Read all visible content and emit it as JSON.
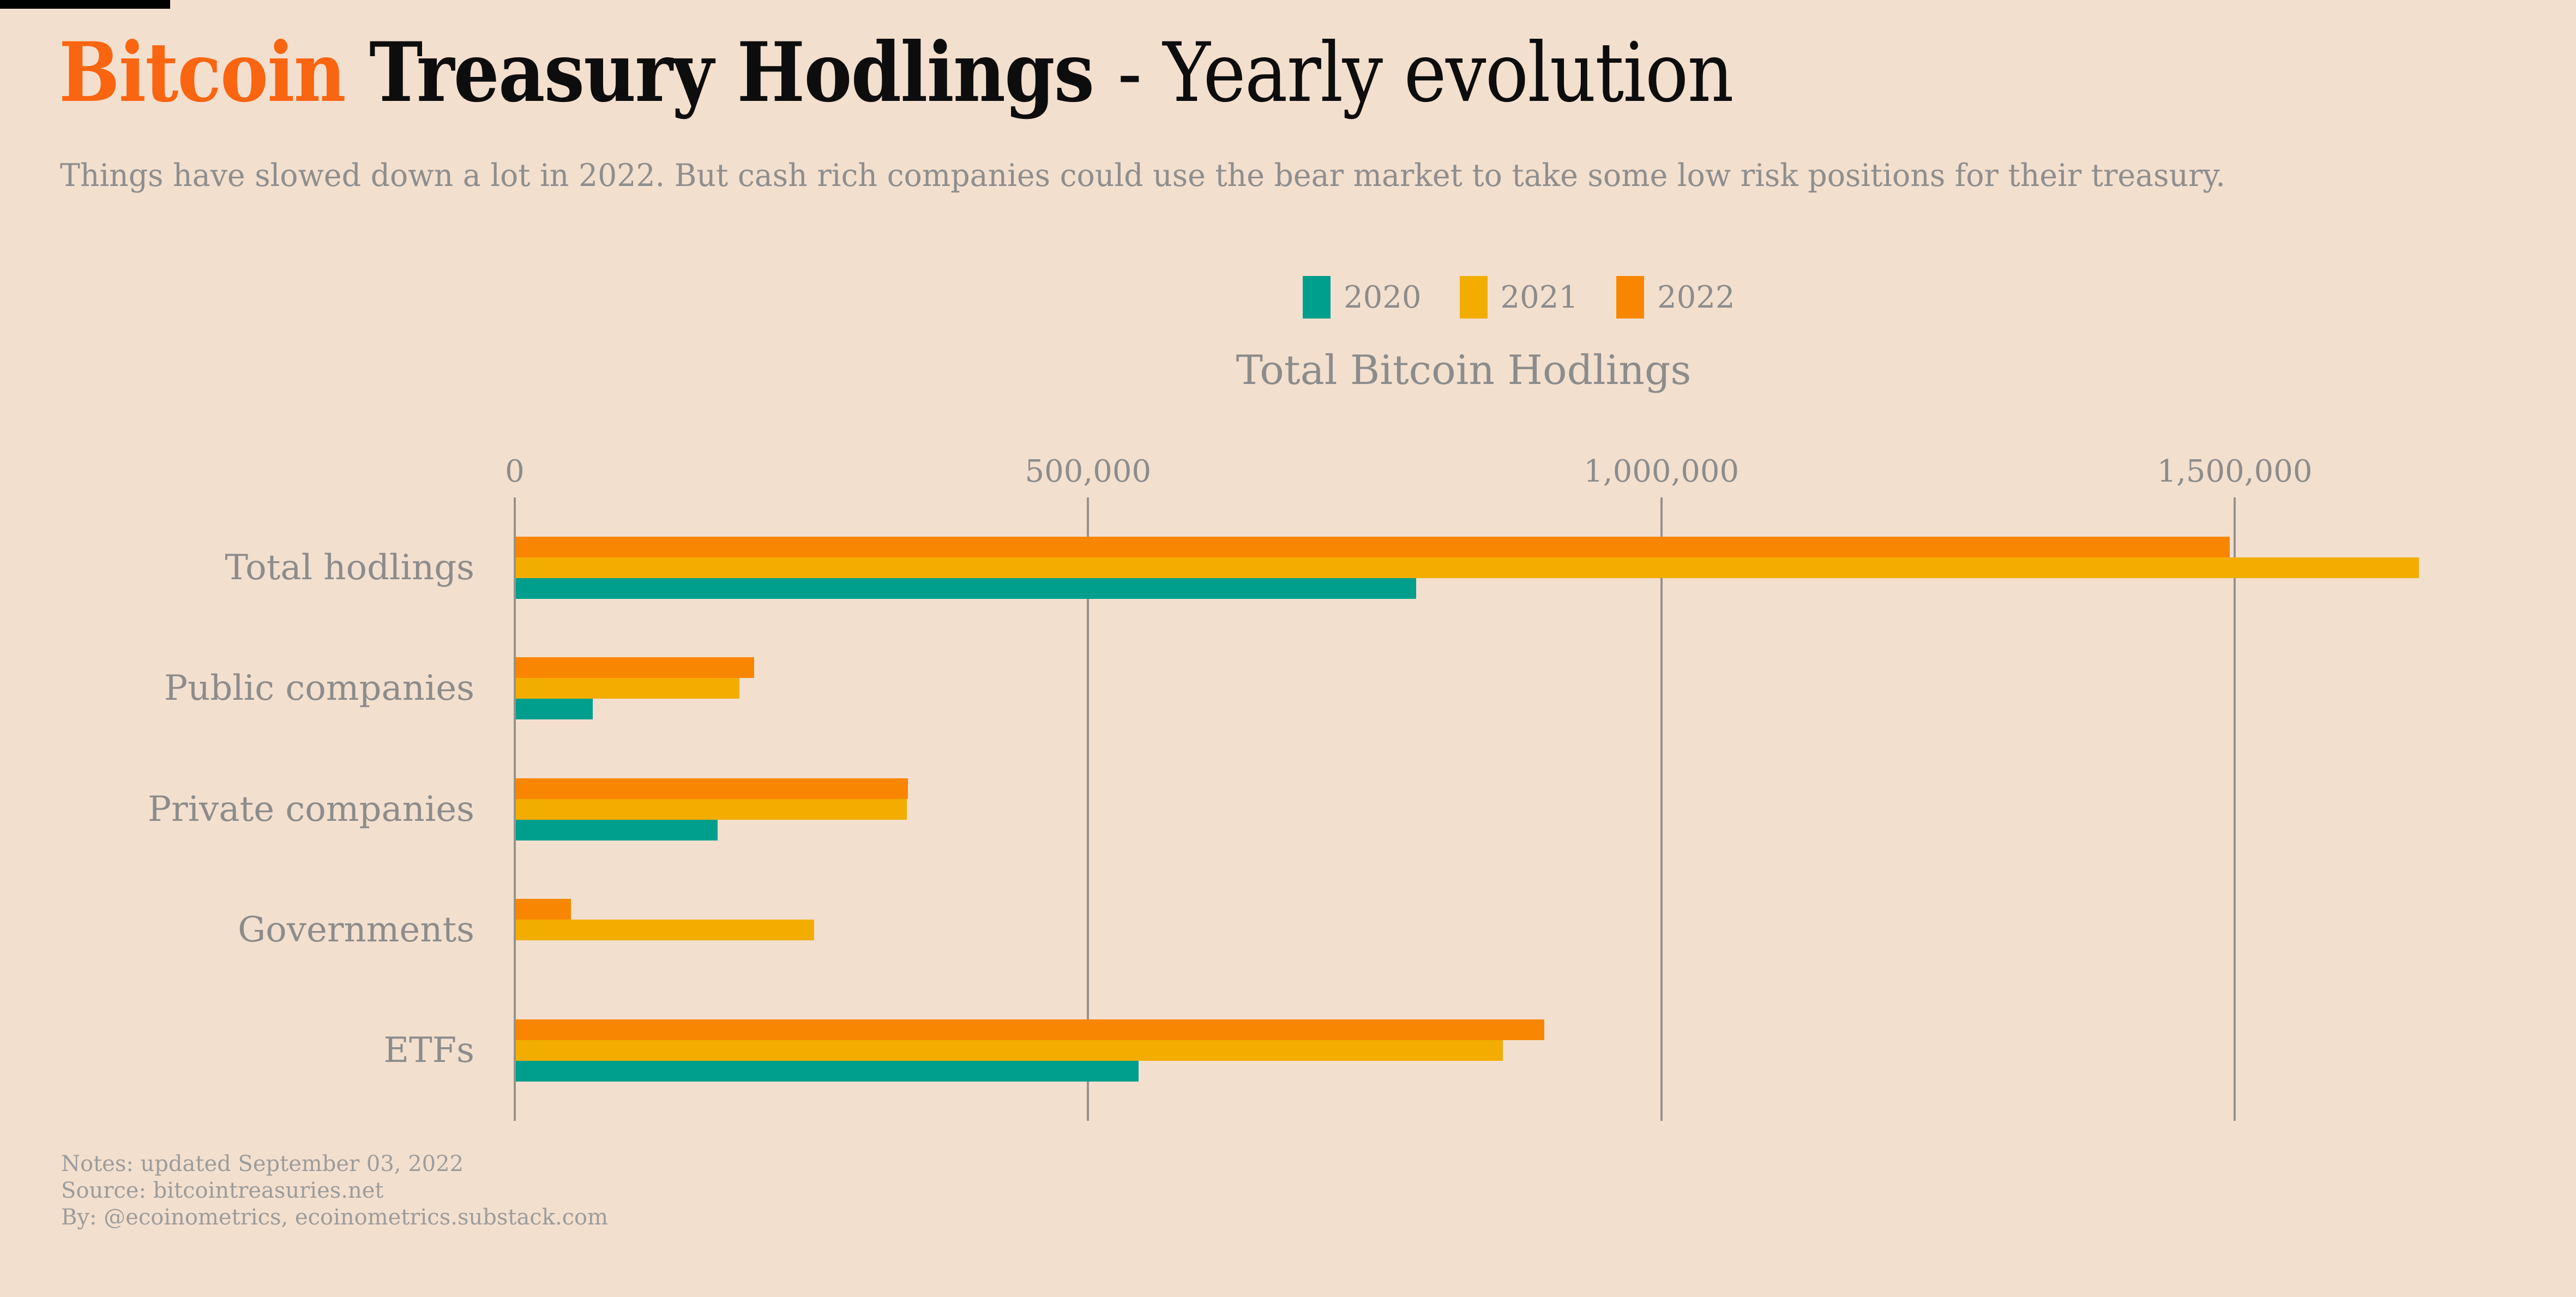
{
  "page": {
    "background": "#F3DFCE",
    "accent_bar_color": "#000000"
  },
  "header": {
    "title": {
      "highlight": "Bitcoin",
      "bold": "Treasury Hodlings",
      "regular": "- Yearly evolution",
      "highlight_color": "#F96511"
    },
    "subtitle": "Things have slowed down a lot in 2022. But cash rich companies could use the bear market to take some low risk positions for their treasury."
  },
  "legend": {
    "items": [
      {
        "label": "2020",
        "color": "#009E8C"
      },
      {
        "label": "2021",
        "color": "#F2AD00"
      },
      {
        "label": "2022",
        "color": "#F98600"
      }
    ]
  },
  "chart_data": {
    "type": "bar",
    "orientation": "horizontal",
    "title": "Total Bitcoin Hodlings",
    "categories": [
      "Total hodlings",
      "Public companies",
      "Private companies",
      "Governments",
      "ETFs"
    ],
    "series": [
      {
        "name": "2020",
        "color": "#009E8C",
        "values": [
          785000,
          67000,
          176000,
          0,
          543000
        ]
      },
      {
        "name": "2021",
        "color": "#F2AD00",
        "values": [
          1660000,
          195000,
          341000,
          260000,
          861000
        ]
      },
      {
        "name": "2022",
        "color": "#F98600",
        "values": [
          1495000,
          208000,
          342000,
          48000,
          897000
        ]
      }
    ],
    "bar_order_top_to_bottom": [
      "2022",
      "2021",
      "2020"
    ],
    "x_axis": {
      "ticks": [
        0,
        500000,
        1000000,
        1500000
      ],
      "tick_labels": [
        "0",
        "500,000",
        "1,000,000",
        "1,500,000"
      ],
      "max_visible": 1800000
    },
    "grid": true,
    "legend_position": "top-center"
  },
  "notes": {
    "lines": [
      "Notes: updated September 03, 2022",
      "Source: bitcointreasuries.net",
      "By: @ecoinometrics, ecoinometrics.substack.com"
    ]
  },
  "colors": {
    "text_muted": "#8C8C8C",
    "grid_line": "#96928C",
    "notes_text": "#9C9C9C",
    "title_text": "#0D0D0D"
  }
}
